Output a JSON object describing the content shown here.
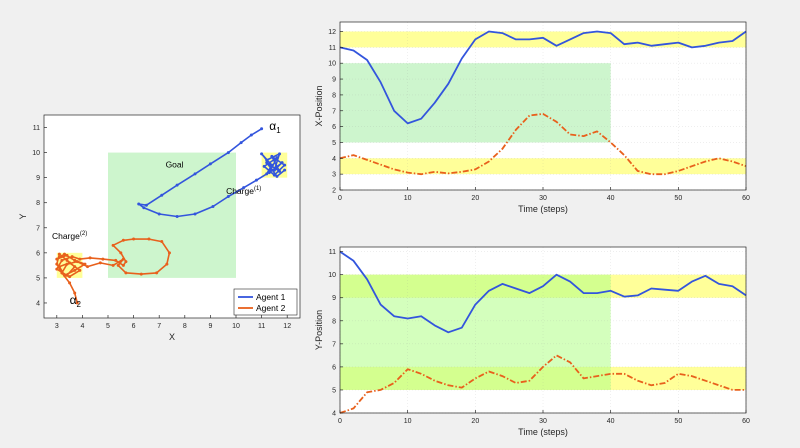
{
  "figure": {
    "background": "#f0f0f0"
  },
  "chart_data": [
    {
      "id": "trajectory",
      "type": "line",
      "xlabel": "X",
      "ylabel": "Y",
      "xlim": [
        2.5,
        12.5
      ],
      "ylim": [
        3.4,
        11.5
      ],
      "xticks": [
        3,
        4,
        5,
        6,
        7,
        8,
        9,
        10,
        11,
        12
      ],
      "yticks": [
        4,
        5,
        6,
        7,
        8,
        9,
        10,
        11
      ],
      "grid": false,
      "legend_position": "bottom-right",
      "regions": [
        {
          "label": "Goal",
          "x": [
            5,
            10
          ],
          "y": [
            5,
            10
          ],
          "color": "#cdf5cd"
        },
        {
          "label": "Charge",
          "sup": "(1)",
          "x": [
            11,
            12
          ],
          "y": [
            9,
            10
          ],
          "color": "#ffff99"
        },
        {
          "label": "Charge",
          "sup": "(2)",
          "x": [
            3,
            4
          ],
          "y": [
            5,
            6
          ],
          "color": "#ffff99"
        }
      ],
      "annotations": [
        {
          "text": "α",
          "sub": "1",
          "x": 11.3,
          "y": 10.9
        },
        {
          "text": "α",
          "sub": "2",
          "x": 3.5,
          "y": 3.95
        }
      ],
      "series": [
        {
          "name": "Agent 1",
          "color": "#3355dd",
          "x": [
            11.0,
            10.6,
            10.2,
            9.7,
            9.0,
            8.4,
            7.7,
            7.1,
            6.5,
            6.2,
            6.4,
            7.0,
            7.7,
            8.4,
            9.1,
            9.7,
            10.3,
            10.8,
            11.2,
            11.4,
            11.0,
            11.2,
            11.7,
            11.5,
            11.8,
            11.3,
            11.6,
            11.1,
            11.5,
            11.9,
            11.4,
            11.7,
            11.2,
            11.6,
            11.9
          ],
          "y": [
            10.95,
            10.7,
            10.4,
            10.0,
            9.55,
            9.15,
            8.7,
            8.3,
            7.9,
            7.95,
            7.8,
            7.55,
            7.45,
            7.55,
            7.85,
            8.25,
            8.6,
            8.9,
            9.15,
            9.5,
            9.95,
            9.7,
            9.95,
            9.3,
            9.6,
            9.2,
            9.8,
            9.45,
            9.1,
            9.5,
            9.85,
            9.25,
            9.6,
            9.05,
            9.3
          ]
        },
        {
          "name": "Agent 2",
          "color": "#e8601c",
          "x": [
            3.8,
            3.7,
            3.5,
            3.2,
            3.0,
            3.1,
            3.4,
            3.7,
            3.4,
            3.0,
            3.2,
            3.6,
            3.9,
            4.3,
            4.8,
            5.3,
            5.6,
            5.7,
            5.5,
            5.2,
            5.6,
            6.0,
            6.6,
            7.1,
            7.4,
            7.3,
            6.9,
            6.3,
            5.7,
            5.4,
            5.6,
            5.2,
            4.7,
            4.2,
            3.8,
            3.4,
            3.2,
            3.5,
            3.9,
            3.5,
            3.1,
            3.3,
            3.7,
            4.1,
            3.7,
            3.3,
            3.0,
            3.4
          ],
          "y": [
            4.0,
            4.4,
            4.8,
            5.2,
            5.55,
            5.95,
            5.7,
            5.45,
            5.1,
            5.35,
            5.7,
            5.85,
            5.75,
            5.8,
            5.75,
            5.7,
            5.5,
            5.65,
            6.0,
            6.3,
            6.5,
            6.55,
            6.55,
            6.45,
            6.0,
            5.55,
            5.2,
            5.15,
            5.2,
            5.5,
            5.75,
            5.5,
            5.6,
            5.45,
            5.65,
            5.55,
            5.2,
            5.05,
            5.3,
            5.6,
            5.45,
            5.1,
            5.3,
            5.55,
            5.7,
            5.95,
            5.75,
            5.9
          ]
        }
      ]
    },
    {
      "id": "x-position",
      "type": "line",
      "xlabel": "Time (steps)",
      "ylabel": "X-Position",
      "xlim": [
        0,
        60
      ],
      "ylim": [
        2,
        12.6
      ],
      "xticks": [
        0,
        10,
        20,
        30,
        40,
        50,
        60
      ],
      "yticks": [
        2,
        3,
        4,
        5,
        6,
        7,
        8,
        9,
        10,
        11,
        12
      ],
      "grid": true,
      "regions": [
        {
          "x": [
            0,
            60
          ],
          "y": [
            11,
            12
          ],
          "color": "#ffff99"
        },
        {
          "x": [
            0,
            60
          ],
          "y": [
            3,
            4
          ],
          "color": "#ffff99"
        },
        {
          "x": [
            0,
            40
          ],
          "y": [
            5,
            10
          ],
          "color": "#cdf5cd"
        }
      ],
      "series": [
        {
          "name": "Agent 1",
          "color": "#3355dd",
          "dashed": false,
          "t": [
            0,
            2,
            4,
            6,
            8,
            10,
            12,
            14,
            16,
            18,
            20,
            22,
            24,
            26,
            28,
            30,
            32,
            34,
            36,
            38,
            40,
            42,
            44,
            46,
            48,
            50,
            52,
            54,
            56,
            58,
            60
          ],
          "v": [
            11.0,
            10.8,
            10.2,
            8.8,
            7.0,
            6.2,
            6.5,
            7.5,
            8.7,
            10.3,
            11.5,
            12.0,
            11.9,
            11.5,
            11.5,
            11.6,
            11.1,
            11.5,
            11.9,
            12.0,
            11.9,
            11.2,
            11.3,
            11.1,
            11.2,
            11.3,
            11.0,
            11.1,
            11.3,
            11.4,
            12.0
          ]
        },
        {
          "name": "Agent 2",
          "color": "#e8601c",
          "dashed": true,
          "t": [
            0,
            2,
            4,
            6,
            8,
            10,
            12,
            14,
            16,
            18,
            20,
            22,
            24,
            26,
            28,
            30,
            32,
            34,
            36,
            38,
            40,
            42,
            44,
            46,
            48,
            50,
            52,
            54,
            56,
            58,
            60
          ],
          "v": [
            4.0,
            4.2,
            3.9,
            3.6,
            3.3,
            3.1,
            3.0,
            3.15,
            3.05,
            3.15,
            3.3,
            3.8,
            4.6,
            5.8,
            6.7,
            6.8,
            6.3,
            5.5,
            5.4,
            5.7,
            5.0,
            4.2,
            3.2,
            3.0,
            3.0,
            3.2,
            3.5,
            3.8,
            4.0,
            3.8,
            3.5
          ]
        }
      ]
    },
    {
      "id": "y-position",
      "type": "line",
      "xlabel": "Time (steps)",
      "ylabel": "Y-Position",
      "xlim": [
        0,
        60
      ],
      "ylim": [
        4,
        11.2
      ],
      "xticks": [
        0,
        10,
        20,
        30,
        40,
        50,
        60
      ],
      "yticks": [
        4,
        5,
        6,
        7,
        8,
        9,
        10,
        11
      ],
      "grid": true,
      "regions": [
        {
          "x": [
            0,
            60
          ],
          "y": [
            9,
            10
          ],
          "color": "#ffff99"
        },
        {
          "x": [
            0,
            60
          ],
          "y": [
            5,
            6
          ],
          "color": "#ffff99"
        },
        {
          "x": [
            0,
            40
          ],
          "y": [
            5,
            10
          ],
          "color": "#b0ff87",
          "opacity": 0.55
        }
      ],
      "series": [
        {
          "name": "Agent 1",
          "color": "#3355dd",
          "dashed": false,
          "t": [
            0,
            2,
            4,
            6,
            8,
            10,
            12,
            14,
            16,
            18,
            20,
            22,
            24,
            26,
            28,
            30,
            32,
            34,
            36,
            38,
            40,
            42,
            44,
            46,
            48,
            50,
            52,
            54,
            56,
            58,
            60
          ],
          "v": [
            11.0,
            10.6,
            9.8,
            8.7,
            8.2,
            8.1,
            8.2,
            7.8,
            7.5,
            7.7,
            8.7,
            9.3,
            9.6,
            9.4,
            9.2,
            9.5,
            10.0,
            9.7,
            9.2,
            9.2,
            9.3,
            9.05,
            9.1,
            9.4,
            9.35,
            9.3,
            9.7,
            9.95,
            9.6,
            9.5,
            9.1
          ]
        },
        {
          "name": "Agent 2",
          "color": "#e8601c",
          "dashed": true,
          "t": [
            0,
            2,
            4,
            6,
            8,
            10,
            12,
            14,
            16,
            18,
            20,
            22,
            24,
            26,
            28,
            30,
            32,
            34,
            36,
            38,
            40,
            42,
            44,
            46,
            48,
            50,
            52,
            54,
            56,
            58,
            60
          ],
          "v": [
            4.0,
            4.2,
            4.9,
            5.0,
            5.3,
            5.9,
            5.7,
            5.4,
            5.2,
            5.1,
            5.5,
            5.8,
            5.6,
            5.3,
            5.4,
            6.0,
            6.5,
            6.2,
            5.5,
            5.6,
            5.7,
            5.7,
            5.4,
            5.2,
            5.3,
            5.7,
            5.6,
            5.4,
            5.2,
            5.0,
            5.0
          ]
        }
      ]
    }
  ]
}
